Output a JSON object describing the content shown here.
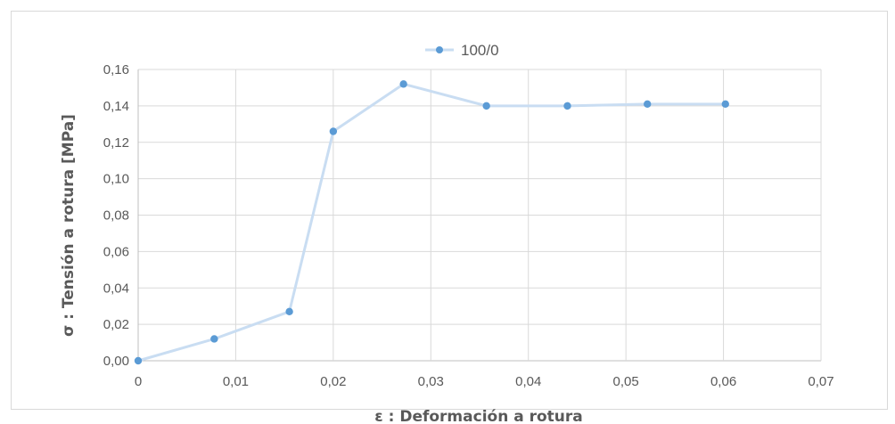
{
  "chart_data": {
    "type": "scatter",
    "title": "",
    "xlabel": "ε : Deformación a rotura",
    "ylabel": "σ : Tensión a rotura [MPa]",
    "xlim": [
      0,
      0.07
    ],
    "ylim": [
      0,
      0.16
    ],
    "x_ticks": [
      "0",
      "0,01",
      "0,02",
      "0,03",
      "0,04",
      "0,05",
      "0,06",
      "0,07"
    ],
    "y_ticks": [
      "0,00",
      "0,02",
      "0,04",
      "0,06",
      "0,08",
      "0,10",
      "0,12",
      "0,14",
      "0,16"
    ],
    "grid": true,
    "legend_position": "top-center",
    "series": [
      {
        "name": "100/0",
        "line_style": "smooth",
        "marker_color": "#5b9bd5",
        "line_color": "#c9ddf2",
        "x": [
          0,
          0.0078,
          0.0155,
          0.02,
          0.0272,
          0.0357,
          0.044,
          0.0522,
          0.0602
        ],
        "y": [
          0,
          0.012,
          0.027,
          0.126,
          0.152,
          0.14,
          0.14,
          0.141,
          0.141
        ]
      }
    ]
  }
}
